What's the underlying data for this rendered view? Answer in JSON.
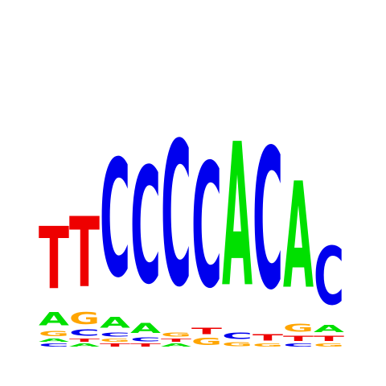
{
  "colors": {
    "A": "#00e000",
    "C": "#0000ee",
    "G": "#ffa500",
    "T": "#ee0000"
  },
  "logo": {
    "positions": [
      {
        "stack": [
          {
            "letter": "C",
            "value": 0.03
          },
          {
            "letter": "A",
            "value": 0.03
          },
          {
            "letter": "G",
            "value": 0.05
          },
          {
            "letter": "A",
            "value": 0.13
          },
          {
            "letter": "T",
            "value": 0.62
          }
        ]
      },
      {
        "stack": [
          {
            "letter": "A",
            "value": 0.03
          },
          {
            "letter": "T",
            "value": 0.03
          },
          {
            "letter": "C",
            "value": 0.06
          },
          {
            "letter": "G",
            "value": 0.12
          },
          {
            "letter": "T",
            "value": 0.7
          }
        ]
      },
      {
        "stack": [
          {
            "letter": "T",
            "value": 0.03
          },
          {
            "letter": "G",
            "value": 0.03
          },
          {
            "letter": "C",
            "value": 0.04
          },
          {
            "letter": "A",
            "value": 0.11
          },
          {
            "letter": "C",
            "value": 1.17
          }
        ]
      },
      {
        "stack": [
          {
            "letter": "T",
            "value": 0.03
          },
          {
            "letter": "C",
            "value": 0.04
          },
          {
            "letter": "A",
            "value": 0.1
          },
          {
            "letter": "C",
            "value": 1.16
          }
        ]
      },
      {
        "stack": [
          {
            "letter": "A",
            "value": 0.03
          },
          {
            "letter": "T",
            "value": 0.03
          },
          {
            "letter": "G",
            "value": 0.04
          },
          {
            "letter": "C",
            "value": 1.44
          }
        ]
      },
      {
        "stack": [
          {
            "letter": "G",
            "value": 0.07
          },
          {
            "letter": "T",
            "value": 0.06
          },
          {
            "letter": "C",
            "value": 1.24
          }
        ]
      },
      {
        "stack": [
          {
            "letter": "G",
            "value": 0.04
          },
          {
            "letter": "C",
            "value": 0.06
          },
          {
            "letter": "A",
            "value": 1.43
          }
        ]
      },
      {
        "stack": [
          {
            "letter": "G",
            "value": 0.03
          },
          {
            "letter": "T",
            "value": 0.06
          },
          {
            "letter": "C",
            "value": 1.4
          }
        ]
      },
      {
        "stack": [
          {
            "letter": "C",
            "value": 0.03
          },
          {
            "letter": "T",
            "value": 0.05
          },
          {
            "letter": "G",
            "value": 0.08
          },
          {
            "letter": "A",
            "value": 1.06
          }
        ]
      },
      {
        "stack": [
          {
            "letter": "G",
            "value": 0.03
          },
          {
            "letter": "T",
            "value": 0.05
          },
          {
            "letter": "A",
            "value": 0.07
          },
          {
            "letter": "C",
            "value": 0.58
          }
        ]
      }
    ]
  }
}
